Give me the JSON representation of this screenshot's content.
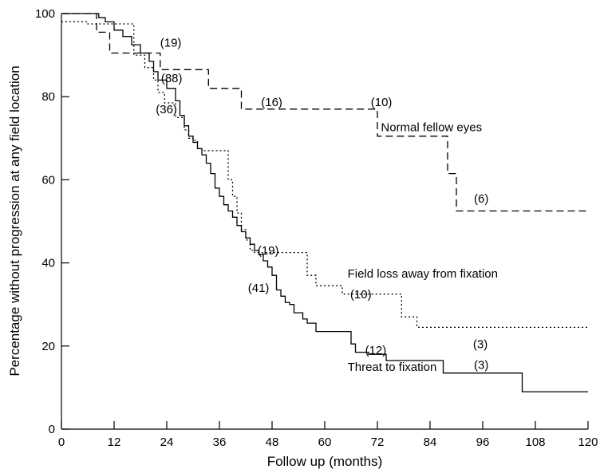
{
  "chart_data": {
    "type": "line",
    "xlabel": "Follow up (months)",
    "ylabel": "Percentage without progression at any field location",
    "xlim": [
      0,
      120
    ],
    "ylim": [
      0,
      100
    ],
    "xticks": [
      0,
      12,
      24,
      36,
      48,
      60,
      72,
      84,
      96,
      108,
      120
    ],
    "yticks": [
      0,
      20,
      40,
      60,
      80,
      100
    ],
    "grid": false,
    "step": true,
    "series": [
      {
        "name": "Normal fellow eyes",
        "dash": "dashed",
        "x": [
          0,
          8,
          8,
          11,
          11,
          22.5,
          22.5,
          33.5,
          33.5,
          41,
          41,
          72,
          72,
          88,
          88,
          90,
          90,
          120
        ],
        "y": [
          100,
          100,
          95.5,
          95.5,
          90.5,
          90.5,
          86.5,
          86.5,
          82,
          82,
          77,
          77,
          70.5,
          70.5,
          61.5,
          61.5,
          52.5,
          52.5
        ]
      },
      {
        "name": "Field loss away from fixation",
        "dash": "dotted",
        "x": [
          0,
          6,
          6,
          16.5,
          16.5,
          19,
          19,
          21,
          21,
          22,
          22,
          23.5,
          23.5,
          26,
          26,
          28,
          28,
          29,
          29,
          30,
          30,
          31,
          31,
          32,
          32,
          38,
          38,
          39,
          39,
          40,
          40,
          41,
          41,
          42,
          42,
          43,
          43,
          44,
          44,
          56,
          56,
          58,
          58,
          64,
          64,
          77.5,
          77.5,
          81,
          81,
          120
        ],
        "y": [
          98,
          98,
          97.5,
          97.5,
          90,
          90,
          87,
          87,
          84,
          84,
          81,
          81,
          78.5,
          78.5,
          75,
          75,
          72,
          72,
          70,
          70,
          69.5,
          69.5,
          67.5,
          67.5,
          67,
          67,
          60,
          60,
          56,
          56,
          52,
          52,
          48,
          48,
          45.5,
          45.5,
          43,
          43,
          42.5,
          42.5,
          37,
          37,
          34.5,
          34.5,
          32.5,
          32.5,
          27,
          27,
          24.5,
          24.5
        ]
      },
      {
        "name": "Threat to fixation",
        "dash": "solid",
        "x": [
          0,
          8.5,
          8.5,
          10,
          10,
          12,
          12,
          14,
          14,
          16,
          16,
          18,
          18,
          20,
          20,
          21,
          21,
          22,
          22,
          24,
          24,
          26,
          26,
          27,
          27,
          28,
          28,
          29,
          29,
          30,
          30,
          31,
          31,
          32,
          32,
          33,
          33,
          34,
          34,
          35,
          35,
          36,
          36,
          37,
          37,
          38,
          38,
          39,
          39,
          40,
          40,
          41,
          41,
          42,
          42,
          43,
          43,
          44,
          44,
          45,
          45,
          46,
          46,
          47,
          47,
          48,
          48,
          49,
          49,
          50,
          50,
          51,
          51,
          52,
          52,
          53,
          53,
          55,
          55,
          56,
          56,
          58,
          58,
          66,
          66,
          67,
          67,
          70,
          70,
          74,
          74,
          87,
          87,
          105,
          105,
          120
        ],
        "y": [
          100,
          100,
          99,
          99,
          98,
          98,
          96,
          96,
          94.5,
          94.5,
          92.5,
          92.5,
          90.5,
          90.5,
          88.5,
          88.5,
          86,
          86,
          84,
          84,
          82,
          82,
          79,
          79,
          75.5,
          75.5,
          73,
          73,
          70.5,
          70.5,
          69,
          69,
          67.5,
          67.5,
          66,
          66,
          64,
          64,
          61.5,
          61.5,
          58,
          58,
          56,
          56,
          54,
          54,
          52.5,
          52.5,
          51,
          51,
          49,
          49,
          47.5,
          47.5,
          46,
          46,
          44.5,
          44.5,
          43,
          43,
          42,
          42,
          40.5,
          40.5,
          39,
          39,
          37,
          37,
          33.5,
          33.5,
          32,
          32,
          30.5,
          30.5,
          30,
          30,
          28,
          28,
          26.5,
          26.5,
          25.5,
          25.5,
          23.5,
          23.5,
          20.5,
          20.5,
          18.5,
          18.5,
          18,
          18,
          16.5,
          16.5,
          13.5,
          13.5,
          9,
          9
        ]
      }
    ],
    "annotations": [
      {
        "text": "(19)",
        "x": 22.5,
        "y": 92
      },
      {
        "text": "(88)",
        "x": 22.7,
        "y": 83.5
      },
      {
        "text": "(36)",
        "x": 21.5,
        "y": 76
      },
      {
        "text": "(16)",
        "x": 45.5,
        "y": 77.7
      },
      {
        "text": "(10)",
        "x": 70.5,
        "y": 77.7
      },
      {
        "text": "Normal fellow eyes",
        "x": 72.8,
        "y": 71.7
      },
      {
        "text": "(6)",
        "x": 94,
        "y": 54.5
      },
      {
        "text": "(19)",
        "x": 44.7,
        "y": 42
      },
      {
        "text": "Field loss away from fixation",
        "x": 65.2,
        "y": 36.5
      },
      {
        "text": "(41)",
        "x": 42.5,
        "y": 33
      },
      {
        "text": "(10)",
        "x": 65.8,
        "y": 31.5
      },
      {
        "text": "(3)",
        "x": 93.8,
        "y": 19.5
      },
      {
        "text": "(12)",
        "x": 69.2,
        "y": 18
      },
      {
        "text": "(3)",
        "x": 94,
        "y": 14.5
      },
      {
        "text": "Threat to fixation",
        "x": 65.2,
        "y": 14
      }
    ]
  }
}
